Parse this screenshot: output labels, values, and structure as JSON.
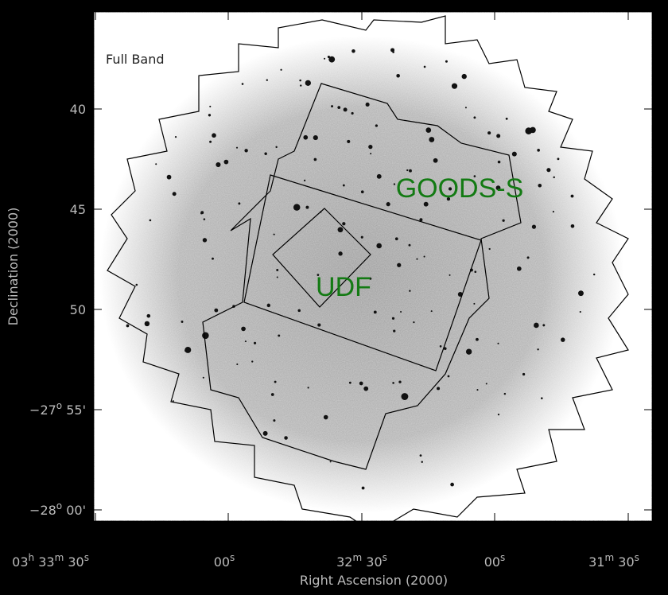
{
  "panel_label": "Full Band",
  "annotations": [
    "GOODS-S",
    "UDF"
  ],
  "x_axis_title": "Right Ascension (2000)",
  "y_axis_title": "Declination (2000)",
  "x_ticks": [
    [
      {
        "base": "03",
        "sup": "h"
      },
      {
        "base": "33",
        "sup": "m"
      },
      {
        "base": "30",
        "sup": "s"
      }
    ],
    [
      {
        "base": "00",
        "sup": "s"
      }
    ],
    [
      {
        "base": "32",
        "sup": "m"
      },
      {
        "base": "30",
        "sup": "s"
      }
    ],
    [
      {
        "base": "00",
        "sup": "s"
      }
    ],
    [
      {
        "base": "31",
        "sup": "m"
      },
      {
        "base": "30",
        "sup": "s"
      }
    ]
  ],
  "y_ticks": [
    "40",
    "45",
    "50",
    [
      {
        "base": "−27",
        "sup": "o"
      },
      "55'"
    ],
    [
      {
        "base": "−28",
        "sup": "o"
      },
      "00'"
    ]
  ]
}
